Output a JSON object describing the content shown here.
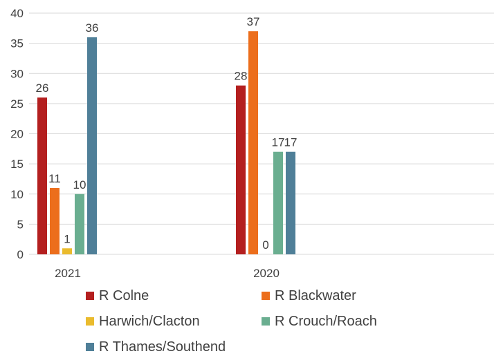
{
  "chart_data": {
    "type": "bar",
    "categories": [
      "2021",
      "2020"
    ],
    "series": [
      {
        "name": "R Colne",
        "values": [
          26,
          28
        ],
        "color": "#b41f1f"
      },
      {
        "name": "R Blackwater",
        "values": [
          11,
          37
        ],
        "color": "#ec6e1c"
      },
      {
        "name": "Harwich/Clacton",
        "values": [
          1,
          0
        ],
        "color": "#eabb2d"
      },
      {
        "name": "R Crouch/Roach",
        "values": [
          10,
          17
        ],
        "color": "#6aae90"
      },
      {
        "name": "R Thames/Southend",
        "values": [
          36,
          17
        ],
        "color": "#4f7f98"
      }
    ],
    "ylim": [
      0,
      40
    ],
    "yticks": [
      0,
      5,
      10,
      15,
      20,
      25,
      30,
      35,
      40
    ],
    "grid": true,
    "legend": "bottom",
    "data_labels": true
  }
}
